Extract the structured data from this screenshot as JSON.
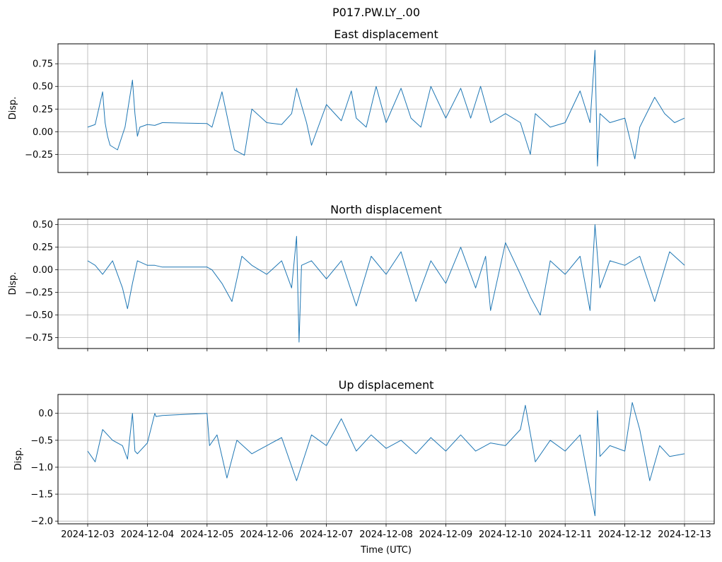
{
  "figure": {
    "suptitle": "P017.PW.LY_.00",
    "xlabel": "Time (UTC)",
    "x_tick_labels": [
      "2024-12-03",
      "2024-12-04",
      "2024-12-05",
      "2024-12-06",
      "2024-12-07",
      "2024-12-08",
      "2024-12-09",
      "2024-12-10",
      "2024-12-11",
      "2024-12-12",
      "2024-12-13"
    ]
  },
  "colors": {
    "line": "#1f77b4",
    "grid": "#b0b0b0",
    "axes": "#000000"
  },
  "chart_data": [
    {
      "type": "line",
      "title": "East displacement",
      "ylabel": "Disp.",
      "xlim": [
        "2024-12-03",
        "2024-12-13"
      ],
      "ylim": [
        -0.45,
        0.97
      ],
      "yticks": [
        -0.25,
        0.0,
        0.25,
        0.5,
        0.75
      ],
      "ytick_labels": [
        "−0.25",
        "0.00",
        "0.25",
        "0.50",
        "0.75"
      ],
      "grid": true,
      "series": [
        {
          "x": [
            "2024-12-03T00:00",
            "2024-12-03T03:00",
            "2024-12-03T06:00",
            "2024-12-03T07:00",
            "2024-12-03T08:00",
            "2024-12-03T09:00",
            "2024-12-03T12:00",
            "2024-12-03T15:00",
            "2024-12-03T18:00",
            "2024-12-03T19:00",
            "2024-12-03T20:00",
            "2024-12-03T21:00",
            "2024-12-04T00:00",
            "2024-12-04T03:00",
            "2024-12-04T06:00",
            "2024-12-04T06:30",
            "2024-12-05T00:00",
            "2024-12-05T02:00",
            "2024-12-05T06:00",
            "2024-12-05T09:00",
            "2024-12-05T11:00",
            "2024-12-05T15:00",
            "2024-12-05T18:00",
            "2024-12-06T00:00",
            "2024-12-06T06:00",
            "2024-12-06T10:00",
            "2024-12-06T12:00",
            "2024-12-06T16:00",
            "2024-12-06T18:00",
            "2024-12-07T00:00",
            "2024-12-07T06:00",
            "2024-12-07T10:00",
            "2024-12-07T12:00",
            "2024-12-07T16:00",
            "2024-12-07T20:00",
            "2024-12-08T00:00",
            "2024-12-08T06:00",
            "2024-12-08T10:00",
            "2024-12-08T14:00",
            "2024-12-08T18:00",
            "2024-12-09T00:00",
            "2024-12-09T06:00",
            "2024-12-09T10:00",
            "2024-12-09T14:00",
            "2024-12-09T18:00",
            "2024-12-10T00:00",
            "2024-12-10T06:00",
            "2024-12-10T10:00",
            "2024-12-10T12:00",
            "2024-12-10T18:00",
            "2024-12-11T00:00",
            "2024-12-11T06:00",
            "2024-12-11T10:00",
            "2024-12-11T12:00",
            "2024-12-11T13:00",
            "2024-12-11T14:00",
            "2024-12-11T18:00",
            "2024-12-12T00:00",
            "2024-12-12T04:00",
            "2024-12-12T06:00",
            "2024-12-12T12:00",
            "2024-12-12T16:00",
            "2024-12-12T20:00",
            "2024-12-13T00:00"
          ],
          "y": [
            0.05,
            0.08,
            0.44,
            0.1,
            -0.05,
            -0.15,
            -0.2,
            0.05,
            0.57,
            0.2,
            -0.05,
            0.05,
            0.08,
            0.07,
            0.1,
            0.1,
            0.09,
            0.05,
            0.44,
            0.05,
            -0.2,
            -0.26,
            0.25,
            0.1,
            0.08,
            0.2,
            0.48,
            0.1,
            -0.15,
            0.3,
            0.12,
            0.45,
            0.15,
            0.05,
            0.5,
            0.1,
            0.48,
            0.15,
            0.05,
            0.5,
            0.15,
            0.48,
            0.15,
            0.5,
            0.1,
            0.2,
            0.1,
            -0.25,
            0.2,
            0.05,
            0.1,
            0.45,
            0.1,
            0.9,
            -0.38,
            0.2,
            0.1,
            0.15,
            -0.3,
            0.05,
            0.38,
            0.2,
            0.1,
            0.15
          ]
        }
      ]
    },
    {
      "type": "line",
      "title": "North displacement",
      "ylabel": "Disp.",
      "xlim": [
        "2024-12-03",
        "2024-12-13"
      ],
      "ylim": [
        -0.87,
        0.56
      ],
      "yticks": [
        -0.75,
        -0.5,
        -0.25,
        0.0,
        0.25,
        0.5
      ],
      "ytick_labels": [
        "−0.75",
        "−0.50",
        "−0.25",
        "0.00",
        "0.25",
        "0.50"
      ],
      "grid": true,
      "series": [
        {
          "x": [
            "2024-12-03T00:00",
            "2024-12-03T03:00",
            "2024-12-03T06:00",
            "2024-12-03T10:00",
            "2024-12-03T14:00",
            "2024-12-03T16:00",
            "2024-12-03T18:00",
            "2024-12-03T20:00",
            "2024-12-04T00:00",
            "2024-12-04T03:00",
            "2024-12-04T06:00",
            "2024-12-04T06:30",
            "2024-12-05T00:00",
            "2024-12-05T02:00",
            "2024-12-05T06:00",
            "2024-12-05T10:00",
            "2024-12-05T14:00",
            "2024-12-05T18:00",
            "2024-12-06T00:00",
            "2024-12-06T06:00",
            "2024-12-06T10:00",
            "2024-12-06T12:00",
            "2024-12-06T13:00",
            "2024-12-06T14:00",
            "2024-12-06T18:00",
            "2024-12-07T00:00",
            "2024-12-07T06:00",
            "2024-12-07T12:00",
            "2024-12-07T18:00",
            "2024-12-08T00:00",
            "2024-12-08T06:00",
            "2024-12-08T12:00",
            "2024-12-08T18:00",
            "2024-12-09T00:00",
            "2024-12-09T06:00",
            "2024-12-09T12:00",
            "2024-12-09T16:00",
            "2024-12-09T18:00",
            "2024-12-10T00:00",
            "2024-12-10T06:00",
            "2024-12-10T10:00",
            "2024-12-10T14:00",
            "2024-12-10T18:00",
            "2024-12-11T00:00",
            "2024-12-11T06:00",
            "2024-12-11T10:00",
            "2024-12-11T12:00",
            "2024-12-11T14:00",
            "2024-12-11T18:00",
            "2024-12-12T00:00",
            "2024-12-12T06:00",
            "2024-12-12T12:00",
            "2024-12-12T18:00",
            "2024-12-13T00:00"
          ],
          "y": [
            0.1,
            0.05,
            -0.05,
            0.1,
            -0.2,
            -0.43,
            -0.15,
            0.1,
            0.05,
            0.05,
            0.03,
            0.03,
            0.03,
            0.0,
            -0.15,
            -0.35,
            0.15,
            0.05,
            -0.05,
            0.1,
            -0.2,
            0.37,
            -0.8,
            0.05,
            0.1,
            -0.1,
            0.1,
            -0.4,
            0.15,
            -0.05,
            0.2,
            -0.35,
            0.1,
            -0.15,
            0.25,
            -0.2,
            0.15,
            -0.45,
            0.3,
            -0.05,
            -0.3,
            -0.5,
            0.1,
            -0.05,
            0.15,
            -0.45,
            0.5,
            -0.2,
            0.1,
            0.05,
            0.15,
            -0.35,
            0.2,
            0.05
          ]
        }
      ]
    },
    {
      "type": "line",
      "title": "Up displacement",
      "ylabel": "Disp.",
      "xlim": [
        "2024-12-03",
        "2024-12-13"
      ],
      "ylim": [
        -2.05,
        0.35
      ],
      "yticks": [
        -2.0,
        -1.5,
        -1.0,
        -0.5,
        0.0
      ],
      "ytick_labels": [
        "−2.0",
        "−1.5",
        "−1.0",
        "−0.5",
        "0.0"
      ],
      "grid": true,
      "series": [
        {
          "x": [
            "2024-12-03T00:00",
            "2024-12-03T03:00",
            "2024-12-03T06:00",
            "2024-12-03T10:00",
            "2024-12-03T14:00",
            "2024-12-03T16:00",
            "2024-12-03T18:00",
            "2024-12-03T19:00",
            "2024-12-03T20:00",
            "2024-12-04T00:00",
            "2024-12-04T03:00",
            "2024-12-04T03:30",
            "2024-12-04T06:00",
            "2024-12-05T00:00",
            "2024-12-05T01:00",
            "2024-12-05T04:00",
            "2024-12-05T08:00",
            "2024-12-05T12:00",
            "2024-12-05T18:00",
            "2024-12-06T00:00",
            "2024-12-06T06:00",
            "2024-12-06T12:00",
            "2024-12-06T18:00",
            "2024-12-07T00:00",
            "2024-12-07T06:00",
            "2024-12-07T12:00",
            "2024-12-07T18:00",
            "2024-12-08T00:00",
            "2024-12-08T06:00",
            "2024-12-08T12:00",
            "2024-12-08T18:00",
            "2024-12-09T00:00",
            "2024-12-09T06:00",
            "2024-12-09T12:00",
            "2024-12-09T18:00",
            "2024-12-10T00:00",
            "2024-12-10T06:00",
            "2024-12-10T08:00",
            "2024-12-10T12:00",
            "2024-12-10T18:00",
            "2024-12-11T00:00",
            "2024-12-11T06:00",
            "2024-12-11T12:00",
            "2024-12-11T13:00",
            "2024-12-11T14:00",
            "2024-12-11T18:00",
            "2024-12-12T00:00",
            "2024-12-12T03:00",
            "2024-12-12T06:00",
            "2024-12-12T10:00",
            "2024-12-12T14:00",
            "2024-12-12T18:00",
            "2024-12-13T00:00"
          ],
          "y": [
            -0.7,
            -0.9,
            -0.3,
            -0.5,
            -0.6,
            -0.85,
            0.0,
            -0.7,
            -0.75,
            -0.55,
            0.0,
            -0.06,
            -0.04,
            0.0,
            -0.6,
            -0.4,
            -1.2,
            -0.5,
            -0.75,
            -0.6,
            -0.45,
            -1.25,
            -0.4,
            -0.6,
            -0.1,
            -0.7,
            -0.4,
            -0.65,
            -0.5,
            -0.75,
            -0.45,
            -0.7,
            -0.4,
            -0.7,
            -0.55,
            -0.6,
            -0.3,
            0.15,
            -0.9,
            -0.5,
            -0.7,
            -0.4,
            -1.9,
            0.05,
            -0.8,
            -0.6,
            -0.7,
            0.2,
            -0.3,
            -1.25,
            -0.6,
            -0.8,
            -0.75
          ]
        }
      ]
    }
  ]
}
